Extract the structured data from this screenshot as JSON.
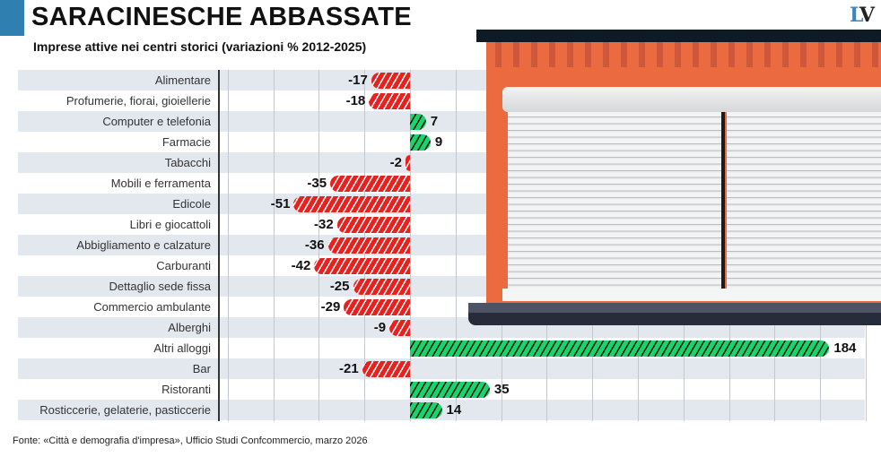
{
  "header": {
    "title": "SARACINESCHE ABBASSATE",
    "subtitle": "Imprese attive nei centri storici (variazioni % 2012-2025)",
    "logo": "LV"
  },
  "source": "Fonte: «Città e demografia d'impresa», Ufficio Studi Confcommercio, marzo 2026",
  "colors": {
    "negative": "#e8201e",
    "positive": "#19d46a",
    "accent": "#2f7fb0"
  },
  "chart_data": {
    "type": "bar",
    "orientation": "horizontal",
    "title": "Imprese attive nei centri storici (variazioni % 2012-2025)",
    "xlim": [
      -80,
      200
    ],
    "grid_step": 20,
    "categories": [
      "Alimentare",
      "Profumerie, fiorai, gioiellerie",
      "Computer e telefonia",
      "Farmacie",
      "Tabacchi",
      "Mobili e ferramenta",
      "Edicole",
      "Libri e giocattoli",
      "Abbigliamento e calzature",
      "Carburanti",
      "Dettaglio sede fissa",
      "Commercio ambulante",
      "Alberghi",
      "Altri alloggi",
      "Bar",
      "Ristoranti",
      "Rosticcerie, gelaterie, pasticcerie"
    ],
    "values": [
      -17,
      -18,
      7,
      9,
      -2,
      -35,
      -51,
      -32,
      -36,
      -42,
      -25,
      -29,
      -9,
      184,
      -21,
      35,
      14
    ]
  }
}
